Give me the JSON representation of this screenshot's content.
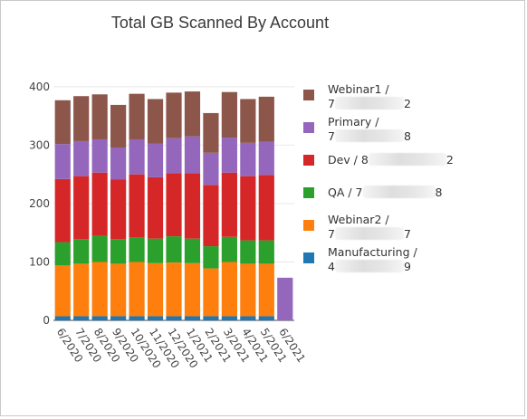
{
  "chart_data": {
    "type": "bar",
    "stacked": true,
    "title": "Total GB Scanned By Account",
    "xlabel": "",
    "ylabel": "",
    "ylim": [
      0,
      420
    ],
    "yticks": [
      0,
      100,
      200,
      300,
      400
    ],
    "grid": true,
    "legend_position": "right",
    "categories": [
      "6/2020",
      "7/2020",
      "8/2020",
      "9/2020",
      "10/2020",
      "11/2020",
      "12/2020",
      "1/2021",
      "2/2021",
      "3/2021",
      "4/2021",
      "5/2021",
      "6/2021"
    ],
    "series": [
      {
        "key": "manufacturing",
        "name": "Manufacturing / 4……9",
        "color": "#1f77b4",
        "values": [
          7,
          7,
          7,
          7,
          7,
          7,
          7,
          7,
          7,
          7,
          7,
          7,
          0
        ]
      },
      {
        "key": "webinar2",
        "name": "Webinar2 / 7……7",
        "color": "#ff7f0e",
        "values": [
          87,
          90,
          93,
          90,
          93,
          91,
          92,
          91,
          82,
          93,
          90,
          90,
          0
        ]
      },
      {
        "key": "qa",
        "name": "QA / 7……8",
        "color": "#2ca02c",
        "values": [
          40,
          42,
          45,
          42,
          42,
          42,
          45,
          42,
          38,
          43,
          40,
          40,
          0
        ]
      },
      {
        "key": "dev",
        "name": "Dev / 8……2",
        "color": "#d62728",
        "values": [
          108,
          108,
          108,
          102,
          108,
          105,
          108,
          112,
          105,
          110,
          110,
          112,
          0
        ]
      },
      {
        "key": "primary",
        "name": "Primary / 7……8",
        "color": "#9467bd",
        "values": [
          60,
          60,
          57,
          55,
          60,
          58,
          60,
          63,
          55,
          60,
          57,
          57,
          73
        ]
      },
      {
        "key": "webinar1",
        "name": "Webinar1 / 7……2",
        "color": "#8c564b",
        "values": [
          75,
          77,
          77,
          73,
          78,
          76,
          78,
          77,
          68,
          78,
          75,
          77,
          0
        ]
      }
    ]
  },
  "legend": [
    {
      "series": "webinar1",
      "line1": "Webinar1 /",
      "prefix": "7",
      "suffix": "2",
      "single": false,
      "color": "#8c564b"
    },
    {
      "series": "primary",
      "line1": "Primary /",
      "prefix": "7",
      "suffix": "8",
      "single": false,
      "color": "#9467bd"
    },
    {
      "series": "dev",
      "line1": "Dev / 8",
      "prefix": "",
      "suffix": "2",
      "single": true,
      "color": "#d62728"
    },
    {
      "series": "qa",
      "line1": "QA / 7",
      "prefix": "",
      "suffix": "8",
      "single": true,
      "color": "#2ca02c"
    },
    {
      "series": "webinar2",
      "line1": "Webinar2 /",
      "prefix": "7",
      "suffix": "7",
      "single": false,
      "color": "#ff7f0e"
    },
    {
      "series": "manufacturing",
      "line1": "Manufacturing /",
      "prefix": "4",
      "suffix": "9",
      "single": false,
      "color": "#1f77b4"
    }
  ]
}
